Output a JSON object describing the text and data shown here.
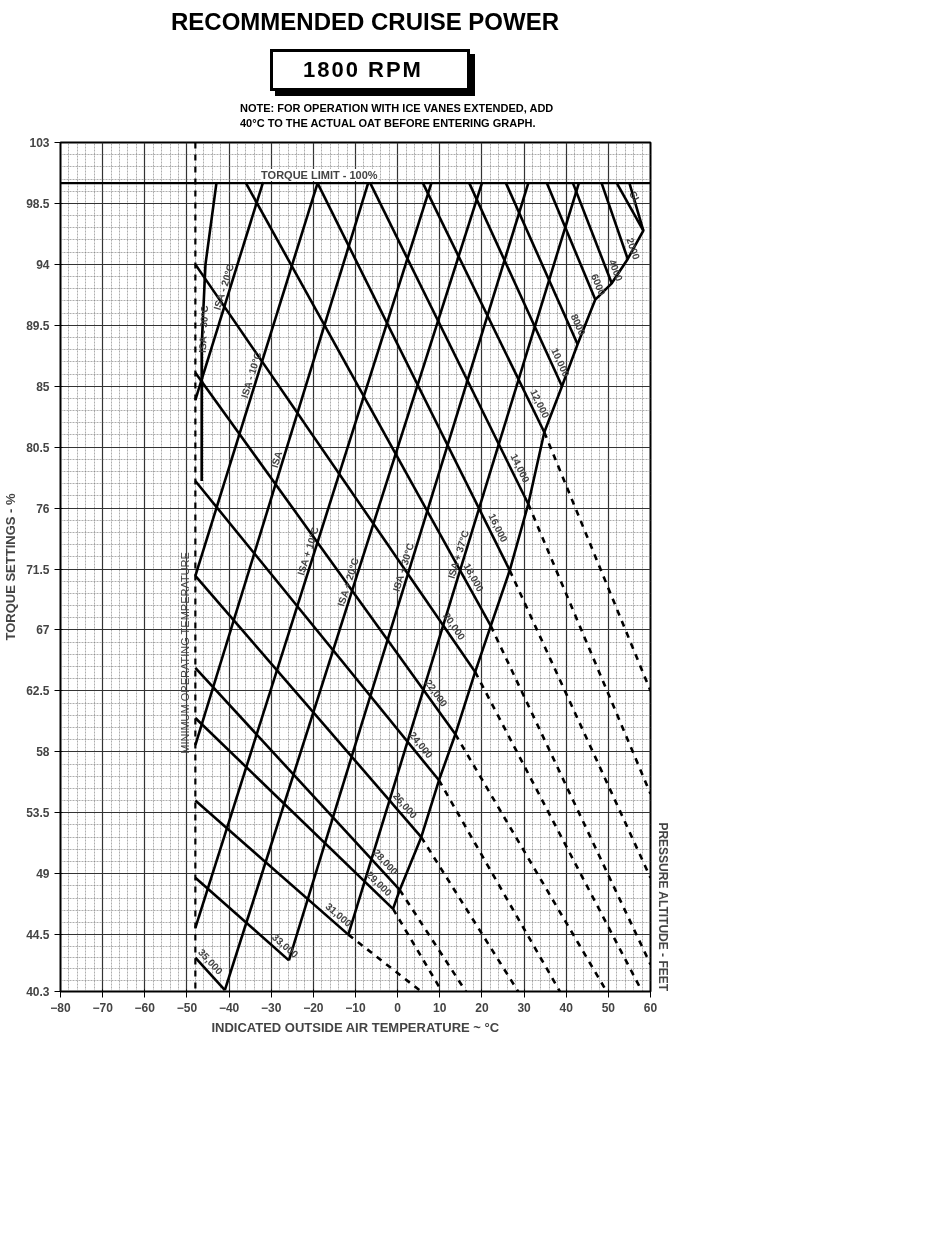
{
  "chart_data": {
    "type": "line",
    "title": "RECOMMENDED CRUISE POWER",
    "subtitle": "1800 RPM",
    "xlabel": "INDICATED OUTSIDE AIR TEMPERATURE ~ °C",
    "ylabel": "TORQUE SETTINGS - %",
    "xlim": [
      -80,
      60
    ],
    "ylim": [
      40.3,
      103
    ],
    "xticks": [
      -80,
      -70,
      -60,
      -50,
      -40,
      -30,
      -20,
      -10,
      0,
      10,
      20,
      30,
      40,
      50,
      60
    ],
    "yticks": [
      40.3,
      44.5,
      49,
      53.5,
      58,
      62.5,
      67,
      71.5,
      76,
      80.5,
      85,
      89.5,
      94,
      98.5,
      103
    ],
    "grid": true,
    "line_style": "solid",
    "ref_lines": [
      {
        "axis": "y",
        "value": 100,
        "label": "TORQUE LIMIT - 100%",
        "color": "#000000",
        "line_style": "solid"
      },
      {
        "axis": "x",
        "value": -48,
        "label": "MINIMUM OPERATING TEMPERATURE",
        "color": "#000000",
        "line_style": "dashed"
      }
    ],
    "series": [
      {
        "name": "ISA - 30°C",
        "color": "#000000",
        "x": [
          -46.5,
          -46.5,
          -45.6,
          -43
        ],
        "values": [
          78,
          88,
          94,
          100
        ]
      },
      {
        "name": "ISA - 20°C",
        "color": "#000000",
        "x": [
          -48,
          -32
        ],
        "values": [
          84,
          100
        ]
      },
      {
        "name": "ISA - 10°C",
        "color": "#000000",
        "x": [
          -48,
          -19
        ],
        "values": [
          71,
          100
        ]
      },
      {
        "name": "ISA",
        "color": "#000000",
        "x": [
          -48,
          -7
        ],
        "values": [
          58.5,
          100
        ]
      },
      {
        "name": "ISA + 10°C",
        "color": "#000000",
        "x": [
          -48,
          8
        ],
        "values": [
          45,
          100
        ]
      },
      {
        "name": "ISA + 20°C",
        "color": "#000000",
        "x": [
          -41,
          20
        ],
        "values": [
          40.4,
          100
        ]
      },
      {
        "name": "ISA + 30°C",
        "color": "#000000",
        "x": [
          -25.8,
          31
        ],
        "values": [
          42.6,
          100
        ]
      },
      {
        "name": "ISA + 37°C",
        "color": "#000000",
        "x": [
          -11.7,
          43
        ],
        "values": [
          44.5,
          100
        ]
      },
      {
        "color": "#000000",
        "x": [
          -1.1,
          0.5,
          5.6,
          9.8,
          13.7,
          18.4,
          22.1,
          26.6,
          31,
          34.8,
          39,
          42.7,
          46.9,
          50.8,
          54.6,
          58.3,
          55
        ],
        "values": [
          46.4,
          47.8,
          51.7,
          55.9,
          59.3,
          63.9,
          67.3,
          71.4,
          76.3,
          81.6,
          85,
          88.1,
          91.4,
          92.6,
          94.4,
          96.5,
          100
        ]
      },
      {
        "name": "SL",
        "color": "#000000",
        "x": [
          52,
          58.3
        ],
        "values": [
          100,
          96.5
        ]
      },
      {
        "name": "2000",
        "color": "#000000",
        "x": [
          48.4,
          54.6
        ],
        "values": [
          100,
          94.4
        ]
      },
      {
        "name": "4000",
        "color": "#000000",
        "x": [
          41.6,
          50.8
        ],
        "values": [
          100,
          92.6
        ]
      },
      {
        "name": "6000",
        "color": "#000000",
        "x": [
          35.4,
          46.9
        ],
        "values": [
          100,
          91.4
        ]
      },
      {
        "name": "8000",
        "color": "#000000",
        "x": [
          25.7,
          42.7
        ],
        "values": [
          100,
          88.1
        ]
      },
      {
        "name": "10,000",
        "color": "#000000",
        "x": [
          17,
          39
        ],
        "values": [
          100,
          85
        ]
      },
      {
        "name": "12,000",
        "color": "#000000",
        "x": [
          6,
          34.8
        ],
        "values": [
          100,
          81.6
        ]
      },
      {
        "name": "14,000",
        "color": "#000000",
        "x": [
          -6.5,
          31
        ],
        "values": [
          100,
          76.3
        ]
      },
      {
        "name": "16,000",
        "color": "#000000",
        "x": [
          -19,
          26.6
        ],
        "values": [
          100,
          71.4
        ]
      },
      {
        "name": "18,000",
        "color": "#000000",
        "x": [
          -36,
          22.1
        ],
        "values": [
          100,
          67.3
        ]
      },
      {
        "name": "20,000",
        "color": "#000000",
        "x": [
          -48,
          18.4
        ],
        "values": [
          94,
          63.9
        ]
      },
      {
        "name": "22,000",
        "color": "#000000",
        "x": [
          -48,
          13.7
        ],
        "values": [
          86,
          59.3
        ]
      },
      {
        "name": "24,000",
        "color": "#000000",
        "x": [
          -48,
          9.8
        ],
        "values": [
          78,
          55.9
        ]
      },
      {
        "name": "26,000",
        "color": "#000000",
        "x": [
          -48,
          5.6
        ],
        "values": [
          71,
          51.7
        ]
      },
      {
        "name": "28,000",
        "color": "#000000",
        "x": [
          -48,
          0.5
        ],
        "values": [
          64.2,
          47.8
        ]
      },
      {
        "name": "29,000",
        "color": "#000000",
        "x": [
          -48,
          -1.1
        ],
        "values": [
          60.5,
          46.4
        ]
      },
      {
        "name": "31,000",
        "color": "#000000",
        "x": [
          -48,
          -11.7
        ],
        "values": [
          54.4,
          44.5
        ]
      },
      {
        "name": "33,000",
        "color": "#000000",
        "x": [
          -48,
          -25.8
        ],
        "values": [
          48.7,
          42.6
        ]
      },
      {
        "name": "35,000",
        "color": "#000000",
        "x": [
          -48,
          -41
        ],
        "values": [
          42.8,
          40.4
        ]
      },
      {
        "color": "#000000",
        "line_style": "dashed",
        "x": [
          34.8,
          60
        ],
        "values": [
          81.6,
          62.5
        ]
      },
      {
        "color": "#000000",
        "line_style": "dashed",
        "x": [
          31,
          60
        ],
        "values": [
          76.3,
          54.9
        ]
      },
      {
        "color": "#000000",
        "line_style": "dashed",
        "x": [
          26.6,
          60
        ],
        "values": [
          71.4,
          48.7
        ]
      },
      {
        "color": "#000000",
        "line_style": "dashed",
        "x": [
          22.1,
          60
        ],
        "values": [
          67.3,
          42.3
        ]
      },
      {
        "color": "#000000",
        "line_style": "dashed",
        "x": [
          18.4,
          58
        ],
        "values": [
          63.9,
          40.3
        ]
      },
      {
        "color": "#000000",
        "line_style": "dashed",
        "x": [
          13.7,
          49.6
        ],
        "values": [
          59.3,
          40.3
        ]
      },
      {
        "color": "#000000",
        "line_style": "dashed",
        "x": [
          9.8,
          38.5
        ],
        "values": [
          55.9,
          40.3
        ]
      },
      {
        "color": "#000000",
        "line_style": "dashed",
        "x": [
          5.6,
          28.6
        ],
        "values": [
          51.7,
          40.3
        ]
      },
      {
        "color": "#000000",
        "line_style": "dashed",
        "x": [
          0.5,
          16.2
        ],
        "values": [
          47.8,
          40.3
        ]
      },
      {
        "color": "#000000",
        "line_style": "dashed",
        "x": [
          -1.1,
          10.5
        ],
        "values": [
          46.4,
          40.3
        ]
      },
      {
        "color": "#000000",
        "line_style": "dashed",
        "x": [
          -11.7,
          5.6
        ],
        "values": [
          44.5,
          40.3
        ]
      }
    ],
    "annotations": [
      "NOTE: FOR OPERATION WITH ICE VANES EXTENDED, ADD 40°C TO THE ACTUAL OAT BEFORE ENTERING GRAPH.",
      "PRESSURE ALTITUDE - FEET"
    ]
  }
}
